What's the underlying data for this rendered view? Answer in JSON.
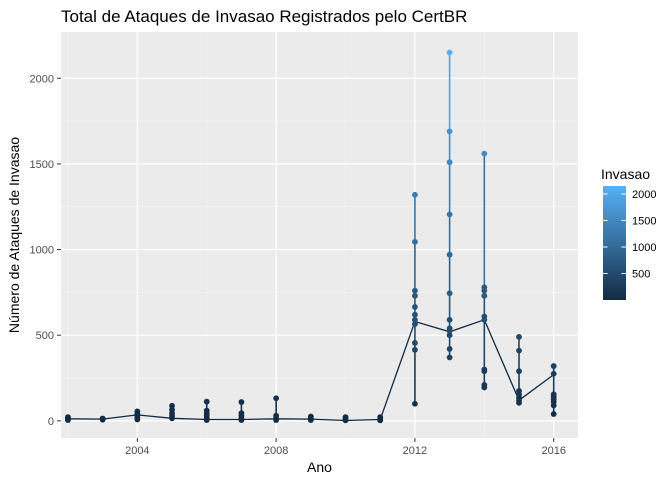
{
  "chart_data": {
    "type": "scatter",
    "title": "Total de Ataques de Invasao Registrados pelo CertBR",
    "xlabel": "Ano",
    "ylabel": "Número de Ataques de Invasao",
    "xlim": [
      2001.8,
      2016.7
    ],
    "ylim": [
      -100,
      2270
    ],
    "x_ticks": [
      2004,
      2008,
      2012,
      2016
    ],
    "y_ticks": [
      0,
      500,
      1000,
      1500,
      2000
    ],
    "grid": true,
    "legend": {
      "title": "Invasao",
      "position": "right",
      "ticks": [
        500,
        1000,
        1500,
        2000
      ],
      "range": [
        0,
        2150
      ],
      "colors": [
        "#132B43",
        "#56B1F7"
      ]
    },
    "line_series": {
      "x": [
        2002,
        2003,
        2004,
        2005,
        2006,
        2007,
        2008,
        2009,
        2010,
        2011,
        2012,
        2013,
        2014,
        2015,
        2016
      ],
      "y": [
        12,
        10,
        35,
        15,
        8,
        8,
        12,
        10,
        2,
        8,
        580,
        520,
        590,
        120,
        270
      ]
    },
    "points": [
      {
        "x": 2002,
        "y": 22
      },
      {
        "x": 2002,
        "y": 15
      },
      {
        "x": 2002,
        "y": 10
      },
      {
        "x": 2002,
        "y": 5
      },
      {
        "x": 2003,
        "y": 14
      },
      {
        "x": 2003,
        "y": 10
      },
      {
        "x": 2003,
        "y": 7
      },
      {
        "x": 2004,
        "y": 55
      },
      {
        "x": 2004,
        "y": 40
      },
      {
        "x": 2004,
        "y": 30
      },
      {
        "x": 2004,
        "y": 18
      },
      {
        "x": 2004,
        "y": 8
      },
      {
        "x": 2005,
        "y": 88
      },
      {
        "x": 2005,
        "y": 65
      },
      {
        "x": 2005,
        "y": 45
      },
      {
        "x": 2005,
        "y": 30
      },
      {
        "x": 2005,
        "y": 15
      },
      {
        "x": 2006,
        "y": 112
      },
      {
        "x": 2006,
        "y": 60
      },
      {
        "x": 2006,
        "y": 45
      },
      {
        "x": 2006,
        "y": 30
      },
      {
        "x": 2006,
        "y": 15
      },
      {
        "x": 2006,
        "y": 5
      },
      {
        "x": 2007,
        "y": 110
      },
      {
        "x": 2007,
        "y": 45
      },
      {
        "x": 2007,
        "y": 30
      },
      {
        "x": 2007,
        "y": 15
      },
      {
        "x": 2007,
        "y": 5
      },
      {
        "x": 2008,
        "y": 132
      },
      {
        "x": 2008,
        "y": 30
      },
      {
        "x": 2008,
        "y": 15
      },
      {
        "x": 2008,
        "y": 5
      },
      {
        "x": 2009,
        "y": 25
      },
      {
        "x": 2009,
        "y": 15
      },
      {
        "x": 2009,
        "y": 5
      },
      {
        "x": 2010,
        "y": 22
      },
      {
        "x": 2010,
        "y": 12
      },
      {
        "x": 2010,
        "y": 3
      },
      {
        "x": 2011,
        "y": 22
      },
      {
        "x": 2011,
        "y": 12
      },
      {
        "x": 2011,
        "y": 3
      },
      {
        "x": 2012,
        "y": 1320
      },
      {
        "x": 2012,
        "y": 1045
      },
      {
        "x": 2012,
        "y": 760
      },
      {
        "x": 2012,
        "y": 730
      },
      {
        "x": 2012,
        "y": 665
      },
      {
        "x": 2012,
        "y": 620
      },
      {
        "x": 2012,
        "y": 590
      },
      {
        "x": 2012,
        "y": 565
      },
      {
        "x": 2012,
        "y": 455
      },
      {
        "x": 2012,
        "y": 415
      },
      {
        "x": 2012,
        "y": 100
      },
      {
        "x": 2013,
        "y": 2150
      },
      {
        "x": 2013,
        "y": 1690
      },
      {
        "x": 2013,
        "y": 1510
      },
      {
        "x": 2013,
        "y": 1205
      },
      {
        "x": 2013,
        "y": 970
      },
      {
        "x": 2013,
        "y": 745
      },
      {
        "x": 2013,
        "y": 590
      },
      {
        "x": 2013,
        "y": 540
      },
      {
        "x": 2013,
        "y": 525
      },
      {
        "x": 2013,
        "y": 500
      },
      {
        "x": 2013,
        "y": 420
      },
      {
        "x": 2013,
        "y": 370
      },
      {
        "x": 2014,
        "y": 1560
      },
      {
        "x": 2014,
        "y": 780
      },
      {
        "x": 2014,
        "y": 760
      },
      {
        "x": 2014,
        "y": 730
      },
      {
        "x": 2014,
        "y": 610
      },
      {
        "x": 2014,
        "y": 590
      },
      {
        "x": 2014,
        "y": 300
      },
      {
        "x": 2014,
        "y": 290
      },
      {
        "x": 2014,
        "y": 210
      },
      {
        "x": 2014,
        "y": 195
      },
      {
        "x": 2015,
        "y": 490
      },
      {
        "x": 2015,
        "y": 410
      },
      {
        "x": 2015,
        "y": 290
      },
      {
        "x": 2015,
        "y": 175
      },
      {
        "x": 2015,
        "y": 155
      },
      {
        "x": 2015,
        "y": 135
      },
      {
        "x": 2015,
        "y": 120
      },
      {
        "x": 2015,
        "y": 105
      },
      {
        "x": 2016,
        "y": 320
      },
      {
        "x": 2016,
        "y": 275
      },
      {
        "x": 2016,
        "y": 155
      },
      {
        "x": 2016,
        "y": 140
      },
      {
        "x": 2016,
        "y": 125
      },
      {
        "x": 2016,
        "y": 110
      },
      {
        "x": 2016,
        "y": 90
      },
      {
        "x": 2016,
        "y": 40
      }
    ]
  }
}
